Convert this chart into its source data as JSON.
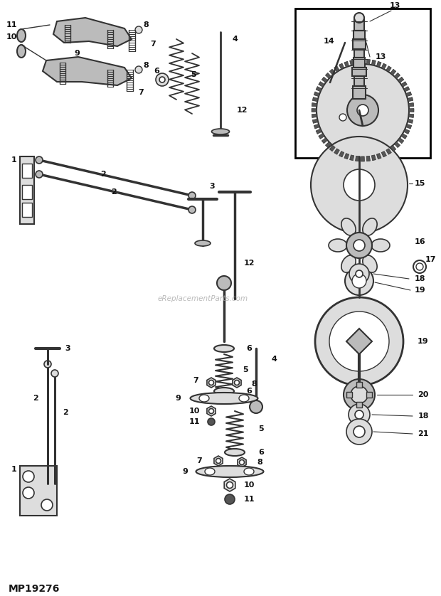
{
  "background_color": "#ffffff",
  "watermark": "eReplacementParts.com",
  "part_number": "MP19276",
  "fig_width": 6.2,
  "fig_height": 8.38,
  "dpi": 100,
  "border_color": "#000000",
  "text_color": "#1a1a1a",
  "line_color": "#333333",
  "gray_fill": "#bbbbbb",
  "dark_fill": "#555555",
  "med_fill": "#888888",
  "light_fill": "#dddddd",
  "white": "#ffffff"
}
